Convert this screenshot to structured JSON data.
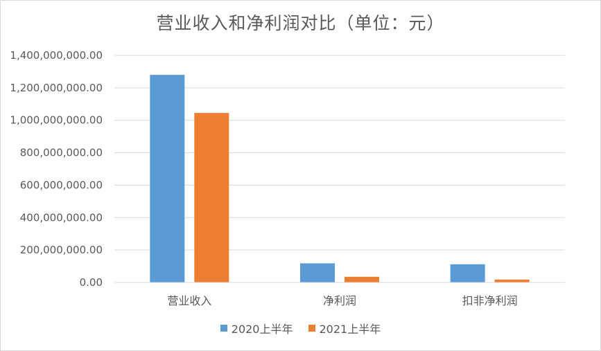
{
  "chart_data": {
    "type": "bar",
    "title": "营业收入和净利润对比（单位：元）",
    "categories": [
      "营业收入",
      "净利润",
      "扣非净利润"
    ],
    "series": [
      {
        "name": "2020上半年",
        "color": "#5b9bd5",
        "values": [
          1280000000,
          118000000,
          112000000
        ]
      },
      {
        "name": "2021上半年",
        "color": "#ed7d31",
        "values": [
          1045000000,
          35000000,
          18000000
        ]
      }
    ],
    "ylim": [
      0,
      1400000000
    ],
    "yticks": [
      0,
      200000000,
      400000000,
      600000000,
      800000000,
      1000000000,
      1200000000,
      1400000000
    ],
    "ytick_labels": [
      "0.00",
      "200,000,000.00",
      "400,000,000.00",
      "600,000,000.00",
      "800,000,000.00",
      "1,000,000,000.00",
      "1,200,000,000.00",
      "1,400,000,000.00"
    ],
    "grid": true,
    "legend_position": "bottom"
  }
}
